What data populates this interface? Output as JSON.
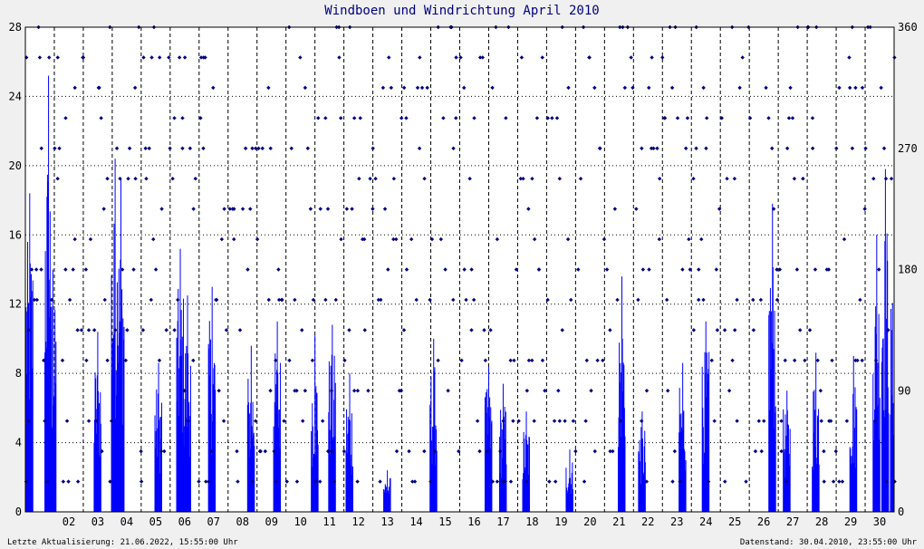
{
  "chart_data": {
    "type": "bar+scatter",
    "title": "Windboen und Windrichtung April 2010",
    "days": [
      "02",
      "03",
      "04",
      "05",
      "06",
      "07",
      "08",
      "09",
      "10",
      "11",
      "12",
      "13",
      "14",
      "15",
      "16",
      "17",
      "18",
      "19",
      "20",
      "21",
      "22",
      "23",
      "24",
      "25",
      "26",
      "27",
      "28",
      "29",
      "30"
    ],
    "y_left": {
      "ticks": [
        0,
        4,
        8,
        12,
        16,
        20,
        24,
        28
      ],
      "ylim": [
        0,
        28
      ]
    },
    "y_right": {
      "ticks": [
        0,
        90,
        180,
        270,
        360
      ],
      "ylim": [
        0,
        360
      ]
    },
    "gust_series": {
      "color": "#0000ff",
      "peaks": [
        {
          "day": 1.15,
          "value": 18.4
        },
        {
          "day": 1.8,
          "value": 25.2
        },
        {
          "day": 1.95,
          "value": 14.0
        },
        {
          "day": 3.5,
          "value": 10.4
        },
        {
          "day": 4.1,
          "value": 20.4
        },
        {
          "day": 4.3,
          "value": 19.2
        },
        {
          "day": 5.6,
          "value": 8.6
        },
        {
          "day": 6.35,
          "value": 15.2
        },
        {
          "day": 6.6,
          "value": 12.5
        },
        {
          "day": 7.45,
          "value": 13.0
        },
        {
          "day": 8.8,
          "value": 9.6
        },
        {
          "day": 9.7,
          "value": 11.0
        },
        {
          "day": 11.0,
          "value": 10.2
        },
        {
          "day": 11.6,
          "value": 10.8
        },
        {
          "day": 12.2,
          "value": 8.0
        },
        {
          "day": 13.5,
          "value": 2.4
        },
        {
          "day": 15.1,
          "value": 10.0
        },
        {
          "day": 17.0,
          "value": 8.4
        },
        {
          "day": 17.5,
          "value": 7.4
        },
        {
          "day": 18.3,
          "value": 5.8
        },
        {
          "day": 19.8,
          "value": 3.6
        },
        {
          "day": 21.6,
          "value": 13.6
        },
        {
          "day": 22.3,
          "value": 5.8
        },
        {
          "day": 23.7,
          "value": 8.6
        },
        {
          "day": 24.5,
          "value": 11.0
        },
        {
          "day": 26.8,
          "value": 17.8
        },
        {
          "day": 27.3,
          "value": 7.0
        },
        {
          "day": 28.3,
          "value": 9.2
        },
        {
          "day": 29.6,
          "value": 9.0
        },
        {
          "day": 30.4,
          "value": 16.0
        },
        {
          "day": 30.7,
          "value": 19.8
        },
        {
          "day": 31.0,
          "value": 14.6
        }
      ]
    },
    "direction_series": {
      "color": "#000080",
      "levels_deg": [
        22.5,
        45,
        67.5,
        90,
        112.5,
        135,
        157.5,
        180,
        202.5,
        225,
        247.5,
        270,
        292.5,
        315,
        337.5,
        360
      ]
    }
  },
  "footer": {
    "last_update": "Letzte Aktualisierung: 21.06.2022, 15:55:00 Uhr",
    "data_state": "Datenstand: 30.04.2010, 23:55:00 Uhr"
  }
}
